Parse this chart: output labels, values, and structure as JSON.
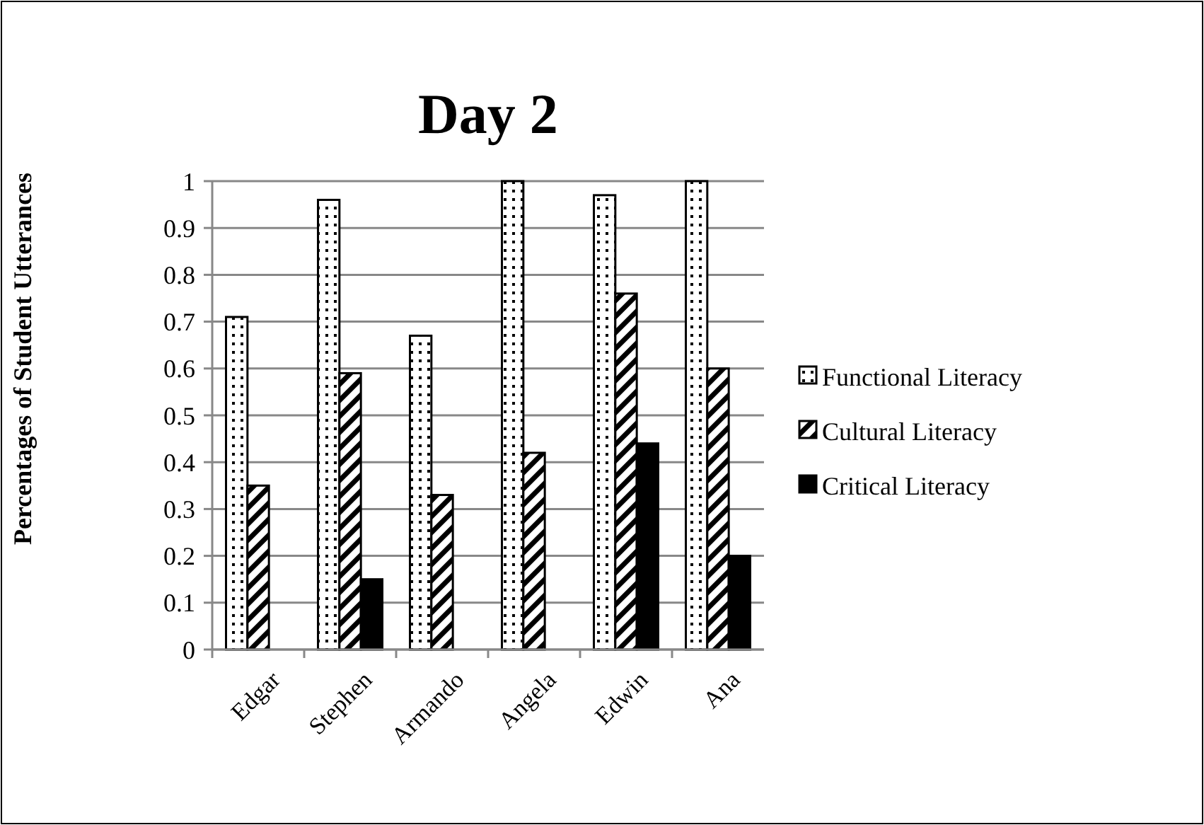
{
  "chart_data": {
    "type": "bar",
    "title": "Day 2",
    "ylabel": "Percentages of Student Utterances",
    "categories": [
      "Edgar",
      "Stephen",
      "Armando",
      "Angela",
      "Edwin",
      "Ana"
    ],
    "series": [
      {
        "name": "Functional Literacy",
        "color": "#000000",
        "values": [
          0.71,
          0.96,
          0.67,
          1,
          0.97,
          1
        ]
      },
      {
        "name": "Cultural Literacy",
        "color": "#000000",
        "values": [
          0.35,
          0.59,
          0.33,
          0.42,
          0.76,
          0.6
        ]
      },
      {
        "name": "Critical Literacy",
        "color": "#000000",
        "values": [
          0,
          0.15,
          0,
          0,
          0.44,
          0.2
        ]
      }
    ],
    "ylim": [
      0,
      1
    ],
    "yticks": [
      0,
      0.1,
      0.2,
      0.3,
      0.4,
      0.5,
      0.6,
      0.7,
      0.8,
      0.9,
      1
    ],
    "grid": "y",
    "legend": "right"
  }
}
